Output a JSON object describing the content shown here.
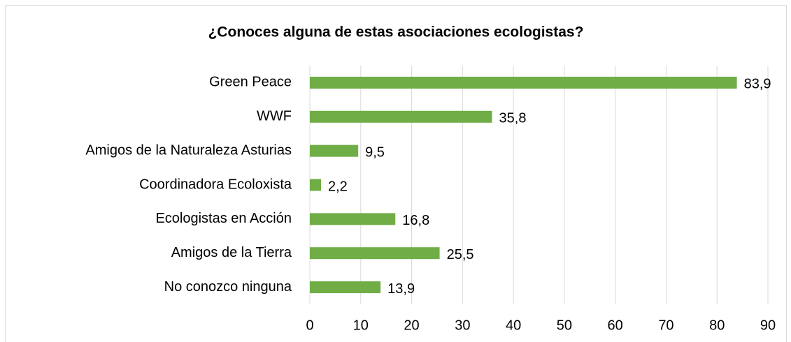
{
  "chart_data": {
    "type": "bar",
    "orientation": "horizontal",
    "title": "¿Conoces alguna de estas asociaciones ecologistas?",
    "categories": [
      "Green Peace",
      "WWF",
      "Amigos de la Naturaleza Asturias",
      "Coordinadora Ecoloxista",
      "Ecologistas en Acción",
      "Amigos de la Tierra",
      "No conozco ninguna"
    ],
    "values": [
      83.9,
      35.8,
      9.5,
      2.2,
      16.8,
      25.5,
      13.9
    ],
    "value_labels": [
      "83,9",
      "35,8",
      "9,5",
      "2,2",
      "16,8",
      "25,5",
      "13,9"
    ],
    "color": "#70ad47",
    "xlim": [
      0,
      90
    ],
    "xticks": [
      0,
      10,
      20,
      30,
      40,
      50,
      60,
      70,
      80,
      90
    ],
    "grid": true
  }
}
